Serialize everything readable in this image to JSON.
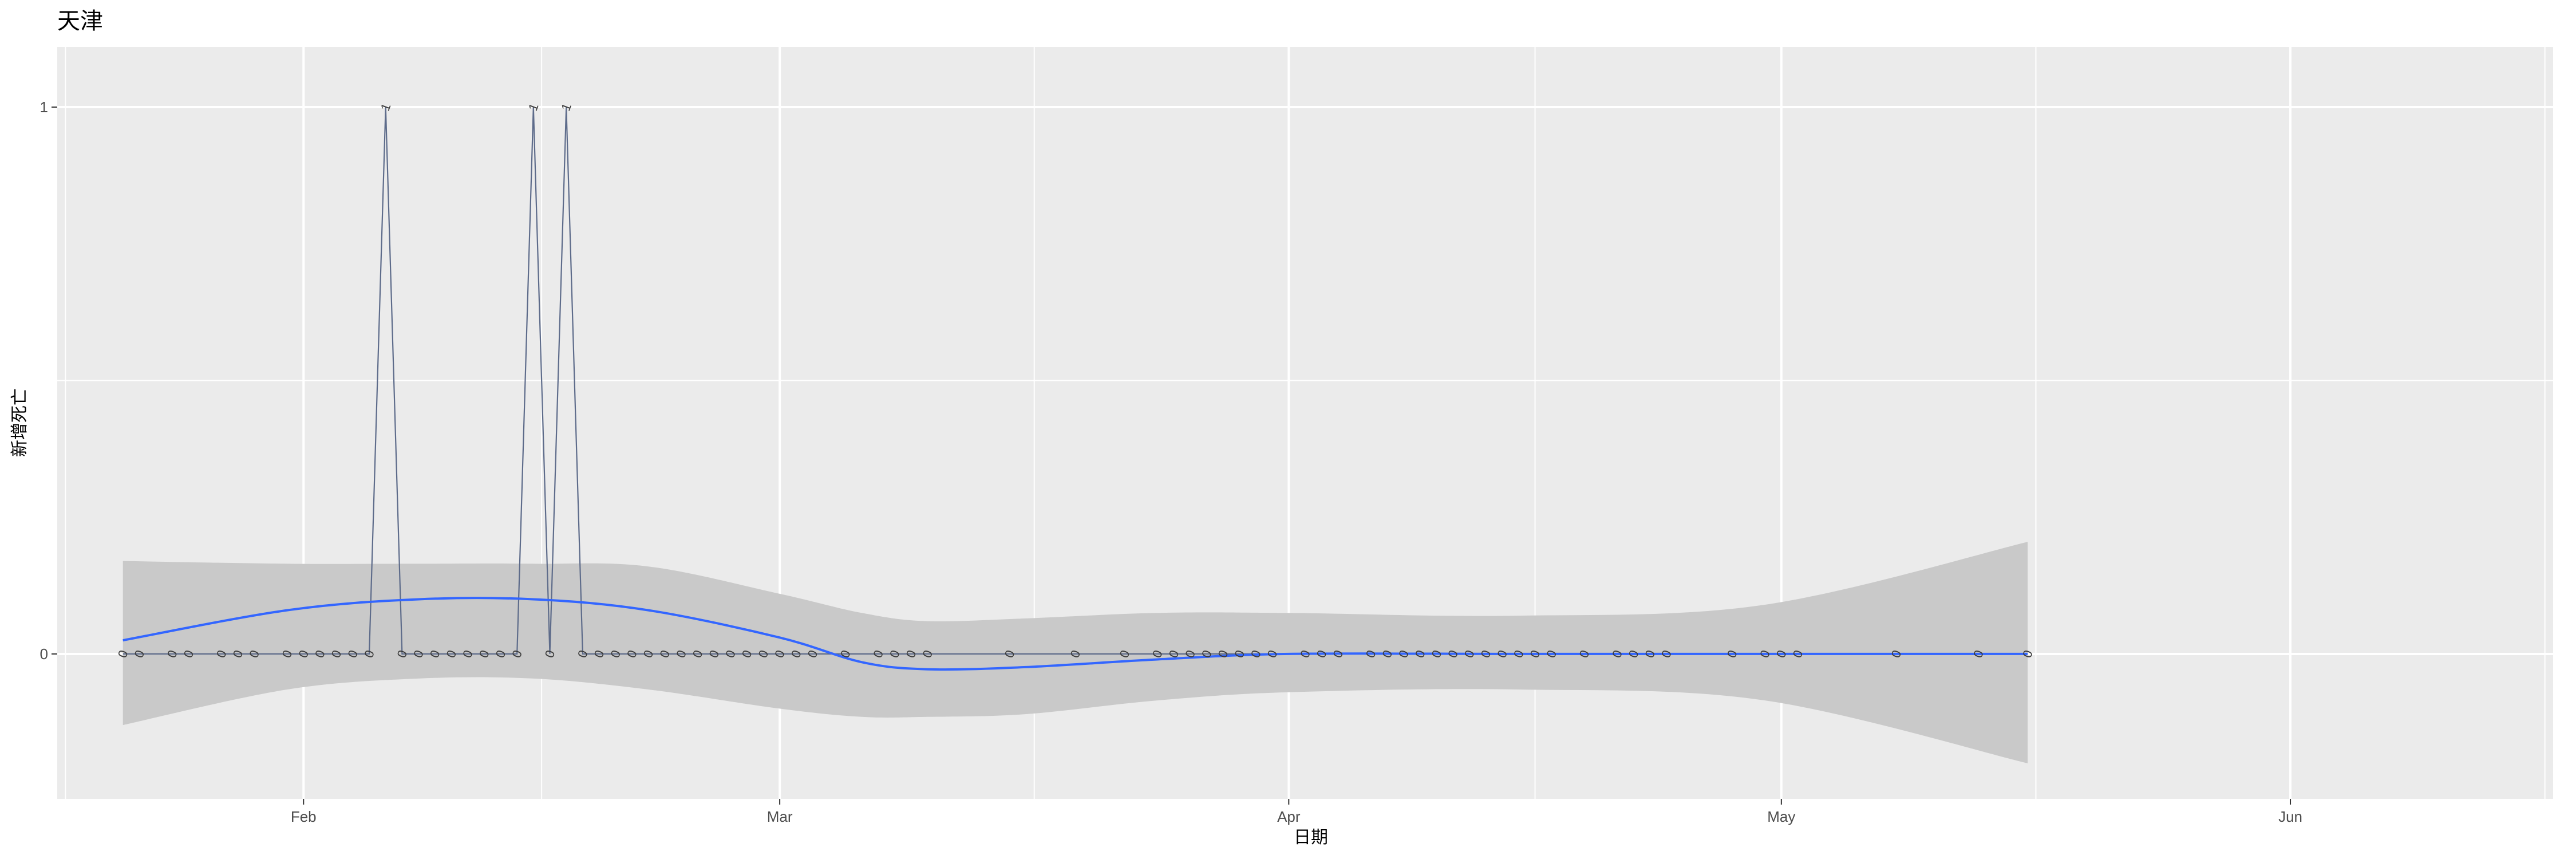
{
  "chart_data": {
    "type": "line",
    "title": "天津",
    "xlabel": "日期",
    "ylabel": "新增死亡",
    "x_ticks": [
      {
        "date": "2020-02-01",
        "label": "Feb"
      },
      {
        "date": "2020-03-01",
        "label": "Mar"
      },
      {
        "date": "2020-04-01",
        "label": "Apr"
      },
      {
        "date": "2020-05-01",
        "label": "May"
      },
      {
        "date": "2020-06-01",
        "label": "Jun"
      }
    ],
    "y_ticks": [
      0,
      1
    ],
    "xlim": [
      "2020-01-17",
      "2020-06-17"
    ],
    "ylim": [
      -0.265,
      1.11
    ],
    "grid": true,
    "legend": "none",
    "colors": {
      "line": "#5d6b8a",
      "smooth": "#3366ff",
      "ribbon": "#c9c9c9",
      "panel": "#ebebeb",
      "grid": "#ffffff"
    },
    "series": [
      {
        "dates": [
          "2020-01-21",
          "2020-01-22",
          "2020-01-24",
          "2020-01-25",
          "2020-01-27",
          "2020-01-28",
          "2020-01-29",
          "2020-01-31",
          "2020-02-01",
          "2020-02-02",
          "2020-02-03",
          "2020-02-04",
          "2020-02-05",
          "2020-02-06",
          "2020-02-07",
          "2020-02-08",
          "2020-02-09",
          "2020-02-10",
          "2020-02-11",
          "2020-02-12",
          "2020-02-13",
          "2020-02-14",
          "2020-02-15",
          "2020-02-16",
          "2020-02-17",
          "2020-02-18",
          "2020-02-19",
          "2020-02-20",
          "2020-02-21",
          "2020-02-22",
          "2020-02-23",
          "2020-02-24",
          "2020-02-25",
          "2020-02-26",
          "2020-02-27",
          "2020-02-28",
          "2020-02-29",
          "2020-03-01",
          "2020-03-02",
          "2020-03-03",
          "2020-03-05",
          "2020-03-07",
          "2020-03-08",
          "2020-03-09",
          "2020-03-10",
          "2020-03-15",
          "2020-03-19",
          "2020-03-22",
          "2020-03-24",
          "2020-03-25",
          "2020-03-26",
          "2020-03-27",
          "2020-03-28",
          "2020-03-29",
          "2020-03-30",
          "2020-03-31",
          "2020-04-02",
          "2020-04-03",
          "2020-04-04",
          "2020-04-06",
          "2020-04-07",
          "2020-04-08",
          "2020-04-09",
          "2020-04-10",
          "2020-04-11",
          "2020-04-12",
          "2020-04-13",
          "2020-04-14",
          "2020-04-15",
          "2020-04-16",
          "2020-04-17",
          "2020-04-19",
          "2020-04-21",
          "2020-04-22",
          "2020-04-23",
          "2020-04-24",
          "2020-04-28",
          "2020-04-30",
          "2020-05-01",
          "2020-05-02",
          "2020-05-08",
          "2020-05-13",
          "2020-05-16"
        ],
        "values": [
          0,
          0,
          0,
          0,
          0,
          0,
          0,
          0,
          0,
          0,
          0,
          0,
          0,
          1,
          0,
          0,
          0,
          0,
          0,
          0,
          0,
          0,
          1,
          0,
          1,
          0,
          0,
          0,
          0,
          0,
          0,
          0,
          0,
          0,
          0,
          0,
          0,
          0,
          0,
          0,
          0,
          0,
          0,
          0,
          0,
          0,
          0,
          0,
          0,
          0,
          0,
          0,
          0,
          0,
          0,
          0,
          0,
          0,
          0,
          0,
          0,
          0,
          0,
          0,
          0,
          0,
          0,
          0,
          0,
          0,
          0,
          0,
          0,
          0,
          0,
          0,
          0,
          0,
          0,
          0,
          0,
          0,
          0
        ]
      }
    ],
    "smooth": {
      "dates": [
        "2020-01-21",
        "2020-01-31",
        "2020-02-08",
        "2020-02-15",
        "2020-02-22",
        "2020-03-01",
        "2020-03-06",
        "2020-03-10",
        "2020-03-16",
        "2020-03-24",
        "2020-04-01",
        "2020-04-15",
        "2020-04-30",
        "2020-05-16"
      ],
      "fit": [
        0.025,
        0.08,
        0.1,
        0.1,
        0.08,
        0.03,
        -0.015,
        -0.028,
        -0.024,
        -0.01,
        0.0,
        0.0,
        0.0,
        0.0
      ],
      "lower": [
        -0.13,
        -0.065,
        -0.045,
        -0.045,
        -0.065,
        -0.1,
        -0.115,
        -0.115,
        -0.11,
        -0.085,
        -0.07,
        -0.065,
        -0.085,
        -0.2
      ],
      "upper": [
        0.17,
        0.165,
        0.165,
        0.165,
        0.16,
        0.11,
        0.075,
        0.06,
        0.065,
        0.075,
        0.075,
        0.07,
        0.09,
        0.205
      ]
    }
  }
}
